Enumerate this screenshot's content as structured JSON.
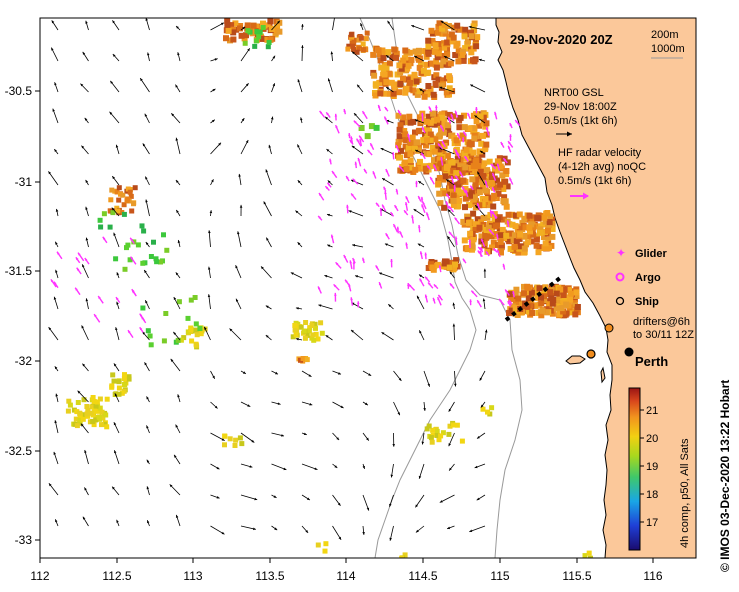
{
  "title": "29-Nov-2020 20Z",
  "depth_contours": {
    "line1": "200m",
    "line2": "1000m"
  },
  "gsl_legend": {
    "line1": "NRT00 GSL",
    "line2": "29-Nov 18:00Z",
    "line3": "0.5m/s (1kt 6h)"
  },
  "hf_legend": {
    "line1": "HF radar velocity",
    "line2": "(4-12h avg) noQC",
    "line3": "0.5m/s (1kt 6h)"
  },
  "symbols": {
    "glider": "Glider",
    "argo": "Argo",
    "ship": "Ship",
    "drifters1": "drifters@6h",
    "drifters2": "to 30/11 12Z"
  },
  "place": "Perth",
  "colorbar": {
    "ticks": [
      "21",
      "20",
      "19",
      "18",
      "17"
    ],
    "label": "4h comp, p50, All Sats"
  },
  "credit": "© IMOS 03-Dec-2020 13:22 Hobart",
  "x_ticks": [
    "112",
    "112.5",
    "113",
    "113.5",
    "114",
    "114.5",
    "115",
    "115.5",
    "116"
  ],
  "y_ticks": [
    "-30.5",
    "-31",
    "-31.5",
    "-32",
    "-32.5",
    "-33"
  ],
  "colors": {
    "land": "#fbc89a",
    "coast": "#000000",
    "contour": "#999999",
    "hf_arrow": "#ff33ff",
    "gsl_arrow": "#000000"
  }
}
